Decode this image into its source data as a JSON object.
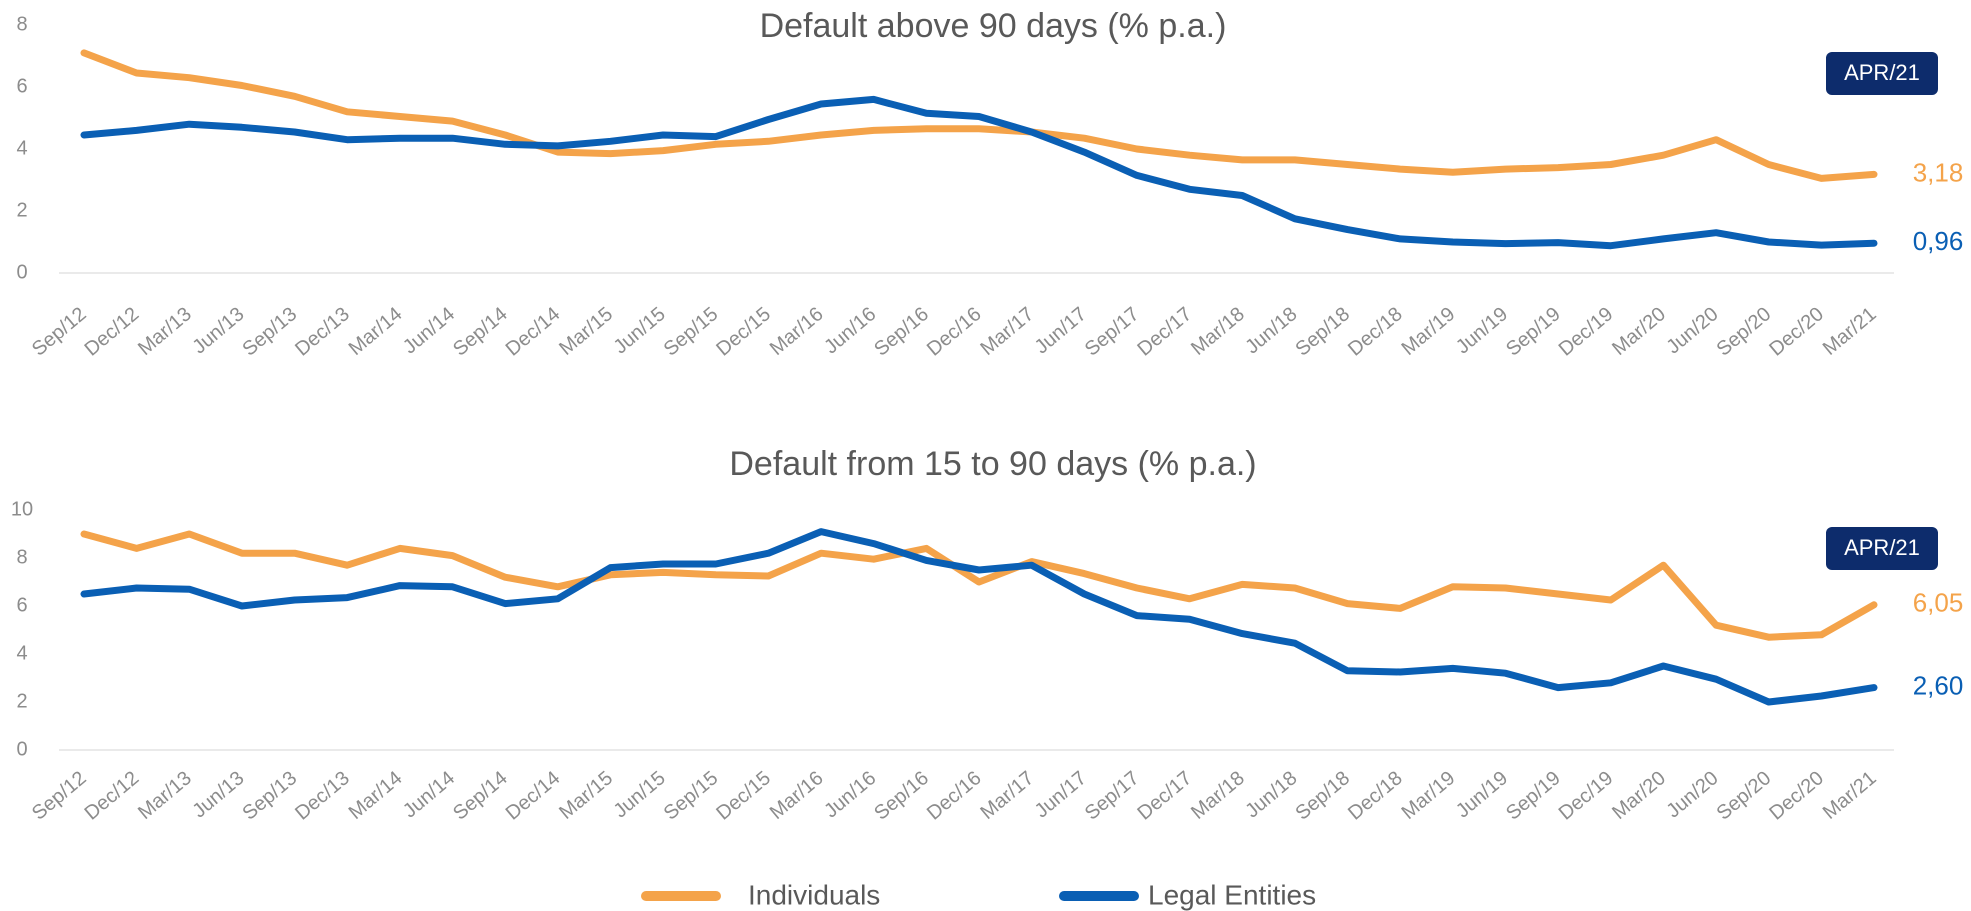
{
  "chart_data": [
    {
      "type": "line",
      "title": "Default above 90 days (% p.a.)",
      "annotation": "APR/21",
      "categories": [
        "Sep/12",
        "Dec/12",
        "Mar/13",
        "Jun/13",
        "Sep/13",
        "Dec/13",
        "Mar/14",
        "Jun/14",
        "Sep/14",
        "Dec/14",
        "Mar/15",
        "Jun/15",
        "Sep/15",
        "Dec/15",
        "Mar/16",
        "Jun/16",
        "Sep/16",
        "Dec/16",
        "Mar/17",
        "Jun/17",
        "Sep/17",
        "Dec/17",
        "Mar/18",
        "Jun/18",
        "Sep/18",
        "Dec/18",
        "Mar/19",
        "Jun/19",
        "Sep/19",
        "Dec/19",
        "Mar/20",
        "Jun/20",
        "Sep/20",
        "Dec/20",
        "Mar/21"
      ],
      "series": [
        {
          "name": "Individuals",
          "color": "#f4a34a",
          "values": [
            7.1,
            6.45,
            6.3,
            6.05,
            5.7,
            5.2,
            5.05,
            4.9,
            4.45,
            3.9,
            3.85,
            3.95,
            4.15,
            4.25,
            4.45,
            4.6,
            4.65,
            4.65,
            4.55,
            4.35,
            4.0,
            3.8,
            3.65,
            3.65,
            3.5,
            3.35,
            3.25,
            3.35,
            3.4,
            3.5,
            3.8,
            4.3,
            3.5,
            3.05,
            3.18
          ],
          "value_labels": [
            null,
            null,
            null,
            null,
            null,
            null,
            null,
            null,
            null,
            null,
            null,
            null,
            null,
            null,
            null,
            null,
            null,
            null,
            null,
            null,
            null,
            null,
            null,
            null,
            null,
            null,
            null,
            null,
            null,
            null,
            null,
            null,
            null,
            null,
            "3,18"
          ]
        },
        {
          "name": "Legal Entities",
          "color": "#0a5fb4",
          "values": [
            4.45,
            4.6,
            4.8,
            4.7,
            4.55,
            4.3,
            4.35,
            4.35,
            4.15,
            4.1,
            4.25,
            4.45,
            4.4,
            4.95,
            5.45,
            5.6,
            5.15,
            5.05,
            4.55,
            3.9,
            3.15,
            2.7,
            2.5,
            1.75,
            1.4,
            1.1,
            1.0,
            0.95,
            0.98,
            0.88,
            1.1,
            1.3,
            1.0,
            0.9,
            0.96
          ],
          "value_labels": [
            null,
            null,
            null,
            null,
            null,
            null,
            null,
            null,
            null,
            null,
            null,
            null,
            null,
            null,
            null,
            null,
            null,
            null,
            null,
            null,
            null,
            null,
            null,
            null,
            null,
            null,
            null,
            null,
            null,
            null,
            null,
            null,
            null,
            null,
            "0,96"
          ]
        }
      ],
      "ylim": [
        0,
        8
      ],
      "yticks": [
        0,
        2,
        4,
        6,
        8
      ],
      "grid": false
    },
    {
      "type": "line",
      "title": "Default from 15 to 90 days (% p.a.)",
      "annotation": "APR/21",
      "categories": [
        "Sep/12",
        "Dec/12",
        "Mar/13",
        "Jun/13",
        "Sep/13",
        "Dec/13",
        "Mar/14",
        "Jun/14",
        "Sep/14",
        "Dec/14",
        "Mar/15",
        "Jun/15",
        "Sep/15",
        "Dec/15",
        "Mar/16",
        "Jun/16",
        "Sep/16",
        "Dec/16",
        "Mar/17",
        "Jun/17",
        "Sep/17",
        "Dec/17",
        "Mar/18",
        "Jun/18",
        "Sep/18",
        "Dec/18",
        "Mar/19",
        "Jun/19",
        "Sep/19",
        "Dec/19",
        "Mar/20",
        "Jun/20",
        "Sep/20",
        "Dec/20",
        "Mar/21"
      ],
      "series": [
        {
          "name": "Individuals",
          "color": "#f4a34a",
          "values": [
            9.0,
            8.4,
            9.0,
            8.2,
            8.2,
            7.7,
            8.4,
            8.1,
            7.2,
            6.8,
            7.3,
            7.4,
            7.3,
            7.25,
            8.2,
            7.95,
            8.4,
            7.0,
            7.85,
            7.35,
            6.75,
            6.3,
            6.9,
            6.75,
            6.1,
            5.9,
            6.8,
            6.75,
            6.5,
            6.25,
            7.7,
            5.2,
            4.7,
            4.8,
            6.05
          ],
          "value_labels": [
            null,
            null,
            null,
            null,
            null,
            null,
            null,
            null,
            null,
            null,
            null,
            null,
            null,
            null,
            null,
            null,
            null,
            null,
            null,
            null,
            null,
            null,
            null,
            null,
            null,
            null,
            null,
            null,
            null,
            null,
            null,
            null,
            null,
            null,
            "6,05"
          ]
        },
        {
          "name": "Legal Entities",
          "color": "#0a5fb4",
          "values": [
            6.5,
            6.75,
            6.7,
            6.0,
            6.25,
            6.35,
            6.85,
            6.8,
            6.1,
            6.3,
            7.6,
            7.75,
            7.75,
            8.2,
            9.1,
            8.6,
            7.9,
            7.5,
            7.7,
            6.5,
            5.6,
            5.45,
            4.85,
            4.45,
            3.3,
            3.25,
            3.4,
            3.2,
            2.6,
            2.8,
            3.5,
            2.95,
            2.0,
            2.25,
            2.6
          ],
          "value_labels": [
            null,
            null,
            null,
            null,
            null,
            null,
            null,
            null,
            null,
            null,
            null,
            null,
            null,
            null,
            null,
            null,
            null,
            null,
            null,
            null,
            null,
            null,
            null,
            null,
            null,
            null,
            null,
            null,
            null,
            null,
            null,
            null,
            null,
            null,
            "2,60"
          ]
        }
      ],
      "ylim": [
        0,
        10
      ],
      "yticks": [
        0,
        2,
        4,
        6,
        8,
        10
      ],
      "grid": false
    }
  ]
}
